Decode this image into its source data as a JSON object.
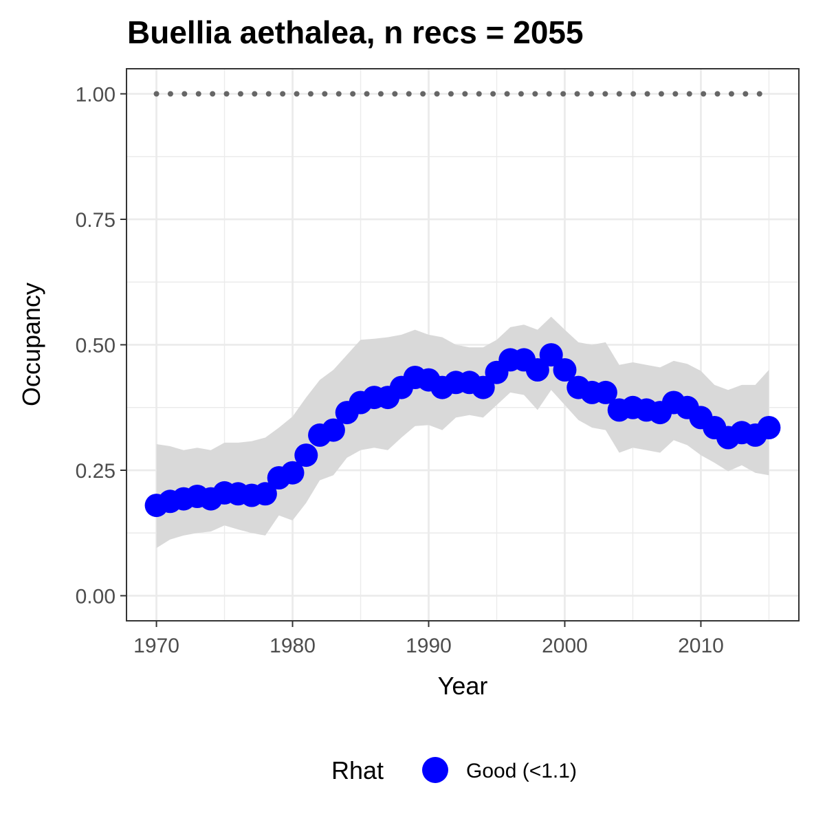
{
  "chart_data": {
    "type": "line",
    "title": "Buellia aethalea, n recs = 2055",
    "xlabel": "Year",
    "ylabel": "Occupancy",
    "xlim": [
      1967.8,
      2017.2
    ],
    "ylim": [
      -0.05,
      1.05
    ],
    "x_ticks": [
      1970,
      1980,
      1990,
      2000,
      2010
    ],
    "x_tick_labels": [
      "1970",
      "1980",
      "1990",
      "2000",
      "2010"
    ],
    "y_ticks": [
      0,
      0.25,
      0.5,
      0.75,
      1.0
    ],
    "y_tick_labels": [
      "0.00",
      "0.25",
      "0.50",
      "0.75",
      "1.00"
    ],
    "grid": true,
    "years": [
      1970,
      1971,
      1972,
      1973,
      1974,
      1975,
      1976,
      1977,
      1978,
      1979,
      1980,
      1981,
      1982,
      1983,
      1984,
      1985,
      1986,
      1987,
      1988,
      1989,
      1990,
      1991,
      1992,
      1993,
      1994,
      1995,
      1996,
      1997,
      1998,
      1999,
      2000,
      2001,
      2002,
      2003,
      2004,
      2005,
      2006,
      2007,
      2008,
      2009,
      2010,
      2011,
      2012,
      2013,
      2014,
      2015
    ],
    "occupancy": [
      0.18,
      0.188,
      0.193,
      0.198,
      0.193,
      0.205,
      0.203,
      0.2,
      0.203,
      0.235,
      0.245,
      0.28,
      0.32,
      0.33,
      0.365,
      0.385,
      0.395,
      0.395,
      0.415,
      0.435,
      0.43,
      0.415,
      0.425,
      0.425,
      0.415,
      0.445,
      0.47,
      0.47,
      0.45,
      0.48,
      0.45,
      0.415,
      0.405,
      0.405,
      0.37,
      0.375,
      0.37,
      0.365,
      0.385,
      0.375,
      0.355,
      0.335,
      0.315,
      0.325,
      0.32,
      0.335
    ],
    "upper_ci": [
      0.302,
      0.298,
      0.29,
      0.295,
      0.29,
      0.305,
      0.305,
      0.308,
      0.315,
      0.335,
      0.357,
      0.395,
      0.43,
      0.45,
      0.48,
      0.51,
      0.512,
      0.515,
      0.52,
      0.53,
      0.52,
      0.515,
      0.5,
      0.495,
      0.495,
      0.51,
      0.535,
      0.54,
      0.53,
      0.556,
      0.53,
      0.505,
      0.5,
      0.505,
      0.46,
      0.465,
      0.46,
      0.455,
      0.468,
      0.462,
      0.448,
      0.42,
      0.41,
      0.42,
      0.42,
      0.45
    ],
    "lower_ci": [
      0.095,
      0.112,
      0.12,
      0.125,
      0.128,
      0.14,
      0.132,
      0.125,
      0.12,
      0.16,
      0.15,
      0.185,
      0.23,
      0.24,
      0.275,
      0.29,
      0.295,
      0.29,
      0.315,
      0.338,
      0.34,
      0.33,
      0.355,
      0.36,
      0.355,
      0.38,
      0.405,
      0.4,
      0.37,
      0.41,
      0.38,
      0.35,
      0.335,
      0.33,
      0.285,
      0.295,
      0.29,
      0.285,
      0.31,
      0.3,
      0.28,
      0.265,
      0.248,
      0.26,
      0.245,
      0.24
    ],
    "reference_line": {
      "y": 1.0,
      "style": "dotted",
      "color": "#666666"
    },
    "point_color": "#0000ff",
    "ribbon_color": "#d9d9d9",
    "legend": {
      "title": "Rhat",
      "entries": [
        {
          "label": "Good (<1.1)",
          "color": "#0000ff"
        }
      ],
      "position": "bottom"
    }
  }
}
